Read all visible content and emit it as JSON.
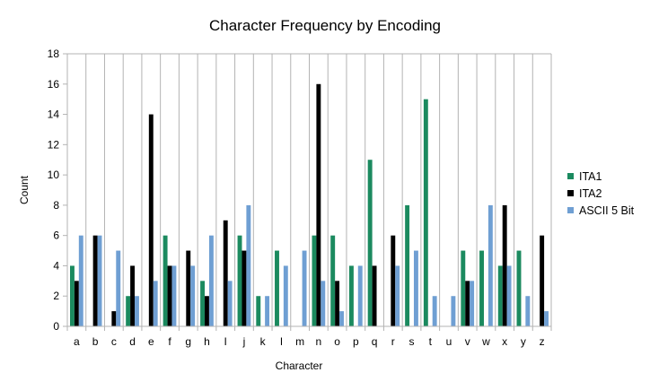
{
  "chart_data": {
    "type": "bar",
    "title": "Character Frequency by Encoding",
    "xlabel": "Character",
    "ylabel": "Count",
    "ylim": [
      0,
      18
    ],
    "yticks": [
      0,
      2,
      4,
      6,
      8,
      10,
      12,
      14,
      16,
      18
    ],
    "grid": "vertical",
    "legend_position": "right",
    "categories": [
      "a",
      "b",
      "c",
      "d",
      "e",
      "f",
      "g",
      "h",
      "I",
      "j",
      "k",
      "l",
      "m",
      "n",
      "o",
      "p",
      "q",
      "r",
      "s",
      "t",
      "u",
      "v",
      "w",
      "x",
      "y",
      "z"
    ],
    "series": [
      {
        "name": "ITA1",
        "color": "#1b8a5f",
        "values": [
          4,
          0,
          0,
          2,
          0,
          6,
          0,
          3,
          0,
          6,
          2,
          5,
          0,
          6,
          6,
          4,
          11,
          0,
          8,
          15,
          0,
          5,
          5,
          4,
          5,
          0
        ]
      },
      {
        "name": "ITA2",
        "color": "#000000",
        "values": [
          3,
          6,
          1,
          4,
          14,
          4,
          5,
          2,
          7,
          5,
          0,
          0,
          0,
          16,
          3,
          0,
          4,
          6,
          0,
          0,
          0,
          3,
          0,
          8,
          0,
          6
        ]
      },
      {
        "name": "ASCII 5 Bit",
        "color": "#6f9fd3",
        "values": [
          6,
          6,
          5,
          2,
          3,
          4,
          4,
          6,
          3,
          8,
          2,
          4,
          5,
          3,
          1,
          4,
          0,
          4,
          5,
          2,
          2,
          3,
          8,
          4,
          2,
          1
        ]
      }
    ]
  }
}
